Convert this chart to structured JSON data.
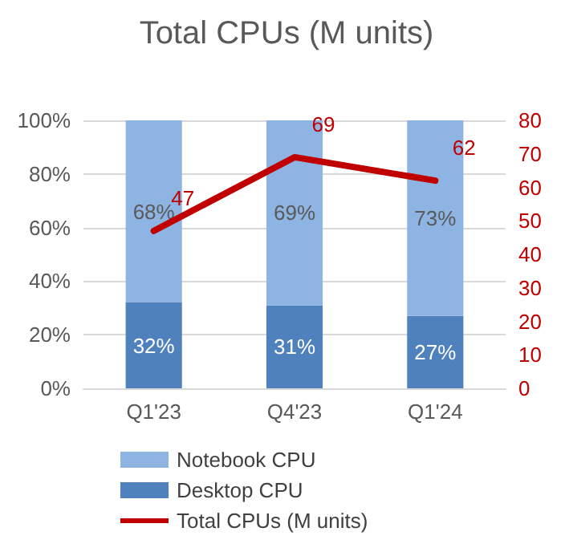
{
  "chart_data": {
    "type": "bar",
    "title": "Total CPUs (M units)",
    "categories": [
      "Q1'23",
      "Q4'23",
      "Q1'24"
    ],
    "stacked": true,
    "series": [
      {
        "name": "Desktop CPU",
        "color": "#4f81bd",
        "values": [
          32,
          31,
          27
        ],
        "value_labels": [
          "32%",
          "31%",
          "27%"
        ]
      },
      {
        "name": "Notebook CPU",
        "color": "#8eb4e3",
        "values": [
          68,
          69,
          73
        ],
        "value_labels": [
          "68%",
          "69%",
          "73%"
        ]
      },
      {
        "name": "Total CPUs (M units)",
        "type": "line",
        "axis": "y2",
        "color": "#c00000",
        "values": [
          47,
          69,
          62
        ],
        "value_labels": [
          "47",
          "69",
          "62"
        ],
        "marker": "none"
      }
    ],
    "ylim": [
      0,
      100
    ],
    "yticks": [
      {
        "value": 0,
        "label": "0%"
      },
      {
        "value": 20,
        "label": "20%"
      },
      {
        "value": 40,
        "label": "40%"
      },
      {
        "value": 60,
        "label": "60%"
      },
      {
        "value": 80,
        "label": "80%"
      },
      {
        "value": 100,
        "label": "100%"
      }
    ],
    "y2lim": [
      0,
      80
    ],
    "y2ticks": [
      0,
      10,
      20,
      30,
      40,
      50,
      60,
      70,
      80
    ],
    "grid": "y",
    "legend": "bottom"
  }
}
